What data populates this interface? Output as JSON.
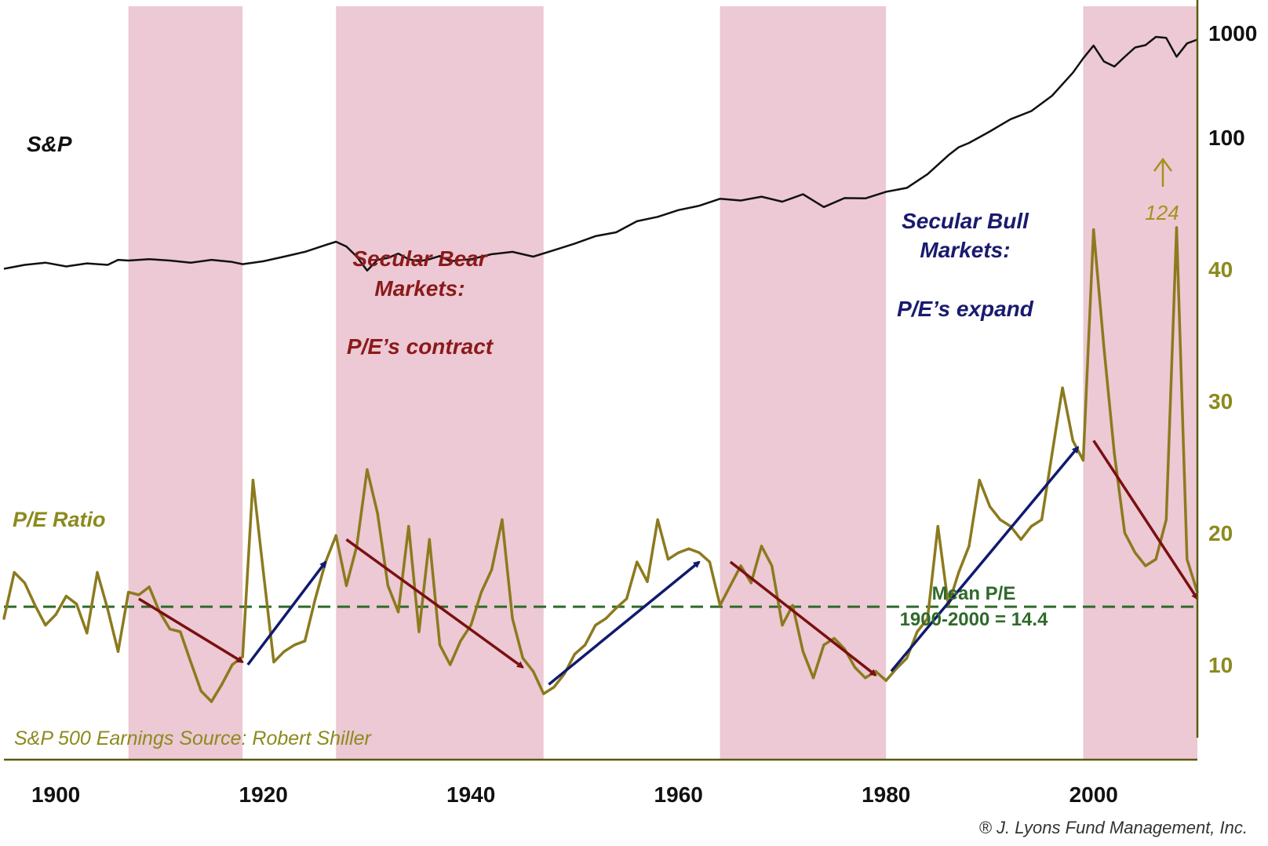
{
  "chart_data": {
    "type": "line",
    "title": "",
    "colors": {
      "bear_band": "#ecc9d4",
      "sp_line": "#111111",
      "pe_line": "#8c7a1e",
      "pe_label": "#8c8a1e",
      "mean_line": "#2f6a2a",
      "bear_text": "#8b1a1a",
      "bull_text": "#1a1a6e",
      "bear_arrow": "#7a1010",
      "bull_arrow": "#101a6e",
      "axis": "#5a5a10",
      "axis_labels": "#8c8a1e"
    },
    "x_axis": {
      "range": [
        1895,
        2010
      ],
      "tick_labels": [
        "1900",
        "1920",
        "1940",
        "1960",
        "1980",
        "2000"
      ]
    },
    "sp_axis": {
      "scale": "log",
      "tick_labels": [
        "1000",
        "100"
      ]
    },
    "pe_axis": {
      "range": [
        6,
        45
      ],
      "tick_labels": [
        "40",
        "30",
        "20",
        "10"
      ]
    },
    "bear_periods": [
      [
        1907,
        1918
      ],
      [
        1927,
        1947
      ],
      [
        1964,
        1980
      ],
      [
        1999,
        2010
      ]
    ],
    "series": [
      {
        "name": "S&P",
        "label": "S&P",
        "points": [
          [
            1895,
            5.5
          ],
          [
            1897,
            6.0
          ],
          [
            1899,
            6.3
          ],
          [
            1901,
            5.8
          ],
          [
            1903,
            6.2
          ],
          [
            1905,
            6.0
          ],
          [
            1906,
            6.7
          ],
          [
            1907,
            6.6
          ],
          [
            1909,
            6.8
          ],
          [
            1911,
            6.6
          ],
          [
            1913,
            6.3
          ],
          [
            1915,
            6.7
          ],
          [
            1917,
            6.4
          ],
          [
            1918,
            6.1
          ],
          [
            1920,
            6.5
          ],
          [
            1922,
            7.2
          ],
          [
            1924,
            8.0
          ],
          [
            1926,
            9.3
          ],
          [
            1927,
            10.0
          ],
          [
            1928,
            9.0
          ],
          [
            1929,
            7.2
          ],
          [
            1930,
            5.3
          ],
          [
            1931,
            6.7
          ],
          [
            1932,
            7.0
          ],
          [
            1933,
            7.7
          ],
          [
            1934,
            6.8
          ],
          [
            1935,
            6.5
          ],
          [
            1936,
            6.8
          ],
          [
            1937,
            7.3
          ],
          [
            1938,
            6.5
          ],
          [
            1940,
            6.8
          ],
          [
            1942,
            7.6
          ],
          [
            1944,
            8.0
          ],
          [
            1946,
            7.2
          ],
          [
            1948,
            8.3
          ],
          [
            1950,
            9.6
          ],
          [
            1952,
            11.3
          ],
          [
            1954,
            12.3
          ],
          [
            1956,
            15.7
          ],
          [
            1958,
            17.3
          ],
          [
            1960,
            20.1
          ],
          [
            1962,
            22.1
          ],
          [
            1964,
            25.8
          ],
          [
            1966,
            24.8
          ],
          [
            1968,
            27.0
          ],
          [
            1970,
            24.2
          ],
          [
            1972,
            28.5
          ],
          [
            1974,
            21.5
          ],
          [
            1976,
            26.2
          ],
          [
            1978,
            26.0
          ],
          [
            1980,
            30.1
          ],
          [
            1982,
            32.8
          ],
          [
            1984,
            44.4
          ],
          [
            1986,
            67.3
          ],
          [
            1987,
            80.4
          ],
          [
            1988,
            88.4
          ],
          [
            1990,
            113.9
          ],
          [
            1992,
            149.3
          ],
          [
            1994,
            178.7
          ],
          [
            1996,
            250.5
          ],
          [
            1998,
            416.0
          ],
          [
            1999,
            572.0
          ],
          [
            2000,
            757.0
          ],
          [
            2001,
            532.5
          ],
          [
            2002,
            476.3
          ],
          [
            2003,
            590.7
          ],
          [
            2004,
            726.0
          ],
          [
            2005,
            764.8
          ],
          [
            2006,
            916.7
          ],
          [
            2007,
            896.0
          ],
          [
            2008,
            592.0
          ],
          [
            2009,
            794.6
          ],
          [
            2010,
            864.0
          ]
        ]
      },
      {
        "name": "P/E Ratio",
        "label": "P/E Ratio",
        "points": [
          [
            1895,
            13.5
          ],
          [
            1896,
            17.0
          ],
          [
            1897,
            16.2
          ],
          [
            1898,
            14.5
          ],
          [
            1899,
            13.0
          ],
          [
            1900,
            13.8
          ],
          [
            1901,
            15.2
          ],
          [
            1902,
            14.6
          ],
          [
            1903,
            12.4
          ],
          [
            1904,
            17.0
          ],
          [
            1905,
            14.2
          ],
          [
            1906,
            11.0
          ],
          [
            1907,
            15.5
          ],
          [
            1908,
            15.3
          ],
          [
            1909,
            15.9
          ],
          [
            1910,
            14.0
          ],
          [
            1911,
            12.7
          ],
          [
            1912,
            12.5
          ],
          [
            1913,
            10.2
          ],
          [
            1914,
            8.0
          ],
          [
            1915,
            7.2
          ],
          [
            1916,
            8.5
          ],
          [
            1917,
            10.0
          ],
          [
            1918,
            10.6
          ],
          [
            1919,
            24.0
          ],
          [
            1920,
            17.0
          ],
          [
            1921,
            10.2
          ],
          [
            1922,
            11.0
          ],
          [
            1923,
            11.5
          ],
          [
            1924,
            11.8
          ],
          [
            1925,
            15.0
          ],
          [
            1926,
            17.8
          ],
          [
            1927,
            19.8
          ],
          [
            1928,
            16.0
          ],
          [
            1929,
            19.0
          ],
          [
            1930,
            24.8
          ],
          [
            1931,
            21.5
          ],
          [
            1932,
            16.0
          ],
          [
            1933,
            14.0
          ],
          [
            1934,
            20.5
          ],
          [
            1935,
            12.5
          ],
          [
            1936,
            19.5
          ],
          [
            1937,
            11.5
          ],
          [
            1938,
            10.0
          ],
          [
            1939,
            11.8
          ],
          [
            1940,
            13.0
          ],
          [
            1941,
            15.5
          ],
          [
            1942,
            17.2
          ],
          [
            1943,
            21.0
          ],
          [
            1944,
            13.5
          ],
          [
            1945,
            10.5
          ],
          [
            1946,
            9.5
          ],
          [
            1947,
            7.8
          ],
          [
            1948,
            8.3
          ],
          [
            1949,
            9.3
          ],
          [
            1950,
            10.8
          ],
          [
            1951,
            11.5
          ],
          [
            1952,
            13.0
          ],
          [
            1953,
            13.5
          ],
          [
            1954,
            14.3
          ],
          [
            1955,
            15.0
          ],
          [
            1956,
            17.8
          ],
          [
            1957,
            16.3
          ],
          [
            1958,
            21.0
          ],
          [
            1959,
            18.0
          ],
          [
            1960,
            18.5
          ],
          [
            1961,
            18.8
          ],
          [
            1962,
            18.5
          ],
          [
            1963,
            17.8
          ],
          [
            1964,
            14.5
          ],
          [
            1965,
            16.0
          ],
          [
            1966,
            17.5
          ],
          [
            1967,
            16.2
          ],
          [
            1968,
            19.0
          ],
          [
            1969,
            17.5
          ],
          [
            1970,
            13.0
          ],
          [
            1971,
            14.5
          ],
          [
            1972,
            11.0
          ],
          [
            1973,
            9.0
          ],
          [
            1974,
            11.5
          ],
          [
            1975,
            12.0
          ],
          [
            1976,
            11.2
          ],
          [
            1977,
            9.8
          ],
          [
            1978,
            9.0
          ],
          [
            1979,
            9.5
          ],
          [
            1980,
            8.8
          ],
          [
            1981,
            9.7
          ],
          [
            1982,
            10.5
          ],
          [
            1983,
            12.5
          ],
          [
            1984,
            13.5
          ],
          [
            1985,
            20.5
          ],
          [
            1986,
            14.5
          ],
          [
            1987,
            17.0
          ],
          [
            1988,
            19.0
          ],
          [
            1989,
            24.0
          ],
          [
            1990,
            22.0
          ],
          [
            1991,
            21.0
          ],
          [
            1992,
            20.5
          ],
          [
            1993,
            19.5
          ],
          [
            1994,
            20.5
          ],
          [
            1995,
            21.0
          ],
          [
            1996,
            26.0
          ],
          [
            1997,
            31.0
          ],
          [
            1998,
            27.0
          ],
          [
            1999,
            25.5
          ],
          [
            2000,
            43.0
          ],
          [
            2001,
            34.0
          ],
          [
            2002,
            26.0
          ],
          [
            2003,
            20.0
          ],
          [
            2004,
            18.5
          ],
          [
            2005,
            17.5
          ],
          [
            2006,
            18.0
          ],
          [
            2007,
            21.0
          ],
          [
            2008,
            44.0
          ],
          [
            2009,
            18.0
          ],
          [
            2010,
            15.5
          ]
        ]
      }
    ],
    "mean_pe": 14.4,
    "mean_label_line1": "Mean P/E",
    "mean_label_line2": "1900-2000 = 14.4",
    "annotations": {
      "bear_title_line1": "Secular Bear",
      "bear_title_line2": "Markets:",
      "bear_subtitle": "P/E’s contract",
      "bull_title_line1": "Secular Bull",
      "bull_title_line2": "Markets:",
      "bull_subtitle": "P/E’s expand",
      "spike_value": "124"
    },
    "source": "S&P 500 Earnings Source: Robert Shiller",
    "credit": "® J. Lyons Fund Management, Inc."
  }
}
